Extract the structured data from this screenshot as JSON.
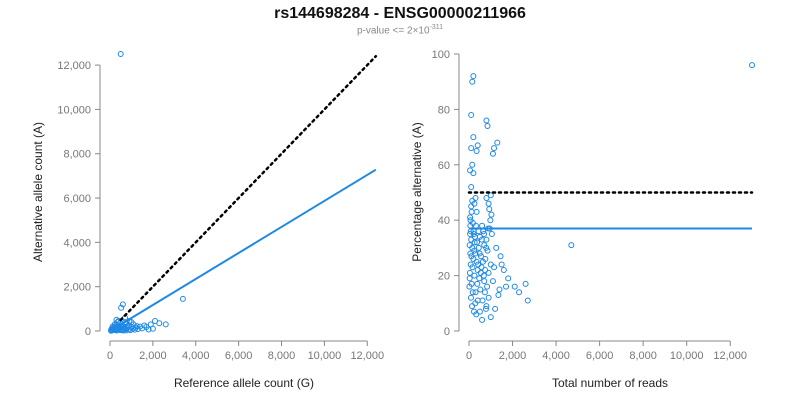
{
  "header": {
    "title": "rs144698284 - ENSG00000211966",
    "pvalue_prefix": "p-value <= 2×10",
    "pvalue_exponent": "-311"
  },
  "colors": {
    "points": "#1e88e5",
    "fit": "#1e88e5",
    "reference": "#000000",
    "axis": "#888888"
  },
  "chart_data": [
    {
      "type": "scatter",
      "xlabel": "Reference allele count (G)",
      "ylabel": "Alternative allele count (A)",
      "xlim": [
        0,
        12500
      ],
      "ylim": [
        0,
        12500
      ],
      "xticks": [
        0,
        2000,
        4000,
        6000,
        8000,
        10000,
        12000
      ],
      "yticks": [
        0,
        2000,
        4000,
        6000,
        8000,
        10000,
        12000
      ],
      "xtick_labels": [
        "0",
        "2,000",
        "4,000",
        "6,000",
        "8,000",
        "10,000",
        "12,000"
      ],
      "ytick_labels": [
        "0",
        "2,000",
        "4,000",
        "6,000",
        "8,000",
        "10,000",
        "12,000"
      ],
      "fit_line": {
        "style": "solid",
        "slope": 0.587,
        "intercept": 0,
        "x_range": [
          0,
          12400
        ]
      },
      "reference_line": {
        "style": "dotted",
        "slope": 1,
        "intercept": 0,
        "x_range": [
          500,
          12400
        ]
      },
      "points": [
        [
          500,
          12500
        ],
        [
          600,
          1200
        ],
        [
          520,
          1050
        ],
        [
          3400,
          1450
        ],
        [
          2100,
          450
        ],
        [
          2300,
          350
        ],
        [
          1900,
          300
        ],
        [
          1600,
          250
        ],
        [
          1400,
          200
        ],
        [
          1200,
          150
        ],
        [
          1100,
          300
        ],
        [
          900,
          250
        ],
        [
          800,
          150
        ],
        [
          700,
          400
        ],
        [
          650,
          200
        ],
        [
          600,
          100
        ],
        [
          550,
          300
        ],
        [
          500,
          50
        ],
        [
          450,
          200
        ],
        [
          400,
          120
        ],
        [
          350,
          80
        ],
        [
          300,
          500
        ],
        [
          250,
          150
        ],
        [
          200,
          50
        ],
        [
          150,
          100
        ],
        [
          100,
          30
        ],
        [
          50,
          10
        ],
        [
          120,
          200
        ],
        [
          180,
          80
        ],
        [
          220,
          300
        ],
        [
          280,
          60
        ],
        [
          320,
          20
        ],
        [
          380,
          250
        ],
        [
          420,
          90
        ],
        [
          480,
          40
        ],
        [
          530,
          180
        ],
        [
          580,
          60
        ],
        [
          620,
          20
        ],
        [
          680,
          120
        ],
        [
          720,
          80
        ],
        [
          760,
          30
        ],
        [
          820,
          220
        ],
        [
          880,
          70
        ],
        [
          950,
          40
        ],
        [
          1000,
          180
        ],
        [
          1050,
          100
        ],
        [
          1150,
          60
        ],
        [
          1250,
          220
        ],
        [
          1300,
          90
        ],
        [
          1500,
          120
        ],
        [
          1700,
          180
        ],
        [
          1800,
          70
        ],
        [
          2000,
          100
        ],
        [
          2600,
          300
        ],
        [
          900,
          450
        ],
        [
          1000,
          400
        ],
        [
          300,
          300
        ],
        [
          200,
          180
        ],
        [
          100,
          120
        ],
        [
          60,
          60
        ],
        [
          700,
          600
        ],
        [
          750,
          350
        ],
        [
          350,
          400
        ],
        [
          400,
          450
        ]
      ]
    },
    {
      "type": "scatter",
      "xlabel": "Total number of reads",
      "ylabel": "Percentage alternative (A)",
      "xlim": [
        0,
        13000
      ],
      "ylim": [
        0,
        100
      ],
      "xticks": [
        0,
        2000,
        4000,
        6000,
        8000,
        10000,
        12000
      ],
      "yticks": [
        0,
        20,
        40,
        60,
        80,
        100
      ],
      "xtick_labels": [
        "0",
        "2,000",
        "4,000",
        "6,000",
        "8,000",
        "10,000",
        "12,000"
      ],
      "ytick_labels": [
        "0",
        "20",
        "40",
        "60",
        "80",
        "100"
      ],
      "fit_line": {
        "style": "solid",
        "y": 37,
        "x_range": [
          0,
          13000
        ]
      },
      "reference_line": {
        "style": "dotted",
        "y": 50,
        "x_range": [
          0,
          13000
        ]
      },
      "points": [
        [
          13000,
          96
        ],
        [
          200,
          92
        ],
        [
          150,
          90
        ],
        [
          100,
          78
        ],
        [
          800,
          76
        ],
        [
          850,
          74
        ],
        [
          1300,
          68
        ],
        [
          1150,
          66
        ],
        [
          1100,
          64
        ],
        [
          200,
          70
        ],
        [
          400,
          67
        ],
        [
          350,
          65
        ],
        [
          100,
          66
        ],
        [
          150,
          60
        ],
        [
          50,
          58
        ],
        [
          200,
          57
        ],
        [
          100,
          52
        ],
        [
          800,
          48
        ],
        [
          900,
          46
        ],
        [
          1000,
          49
        ],
        [
          4700,
          31
        ],
        [
          2600,
          17
        ],
        [
          2700,
          11
        ],
        [
          2100,
          16
        ],
        [
          1800,
          19
        ],
        [
          1600,
          22
        ],
        [
          1500,
          24
        ],
        [
          1400,
          15
        ],
        [
          1200,
          8
        ],
        [
          1000,
          5
        ],
        [
          900,
          12
        ],
        [
          800,
          9
        ],
        [
          700,
          18
        ],
        [
          600,
          4
        ],
        [
          500,
          7
        ],
        [
          400,
          11
        ],
        [
          300,
          14
        ],
        [
          250,
          20
        ],
        [
          200,
          26
        ],
        [
          150,
          30
        ],
        [
          100,
          33
        ],
        [
          80,
          36
        ],
        [
          60,
          38
        ],
        [
          50,
          41
        ],
        [
          120,
          43
        ],
        [
          180,
          39
        ],
        [
          220,
          35
        ],
        [
          260,
          32
        ],
        [
          300,
          28
        ],
        [
          350,
          25
        ],
        [
          400,
          22
        ],
        [
          450,
          30
        ],
        [
          500,
          34
        ],
        [
          550,
          27
        ],
        [
          600,
          38
        ],
        [
          650,
          36
        ],
        [
          700,
          31
        ],
        [
          750,
          26
        ],
        [
          800,
          33
        ],
        [
          850,
          29
        ],
        [
          900,
          21
        ],
        [
          950,
          37
        ],
        [
          1000,
          24
        ],
        [
          1050,
          35
        ],
        [
          1100,
          18
        ],
        [
          1150,
          23
        ],
        [
          1250,
          30
        ],
        [
          1350,
          13
        ],
        [
          1450,
          27
        ],
        [
          1700,
          16
        ],
        [
          2300,
          14
        ],
        [
          120,
          17
        ],
        [
          80,
          24
        ],
        [
          60,
          28
        ],
        [
          40,
          21
        ],
        [
          30,
          19
        ],
        [
          20,
          16
        ],
        [
          90,
          12
        ],
        [
          140,
          9
        ],
        [
          170,
          14
        ],
        [
          230,
          7
        ],
        [
          290,
          10
        ],
        [
          330,
          6
        ],
        [
          380,
          17
        ],
        [
          420,
          24
        ],
        [
          470,
          19
        ],
        [
          520,
          15
        ],
        [
          570,
          23
        ],
        [
          620,
          11
        ],
        [
          680,
          20
        ],
        [
          730,
          14
        ],
        [
          780,
          8
        ],
        [
          830,
          16
        ],
        [
          880,
          37
        ],
        [
          930,
          44
        ],
        [
          980,
          40
        ],
        [
          1030,
          42
        ],
        [
          250,
          46
        ],
        [
          300,
          48
        ],
        [
          350,
          43
        ],
        [
          150,
          47
        ],
        [
          100,
          45
        ],
        [
          50,
          35
        ],
        [
          30,
          31
        ],
        [
          70,
          40
        ],
        [
          110,
          27
        ],
        [
          160,
          23
        ],
        [
          210,
          36
        ],
        [
          240,
          29
        ],
        [
          270,
          34
        ],
        [
          320,
          38
        ],
        [
          370,
          32
        ],
        [
          440,
          36
        ],
        [
          490,
          28
        ],
        [
          540,
          21
        ],
        [
          590,
          33
        ],
        [
          640,
          25
        ],
        [
          690,
          35
        ],
        [
          740,
          22
        ],
        [
          790,
          30
        ]
      ]
    }
  ]
}
